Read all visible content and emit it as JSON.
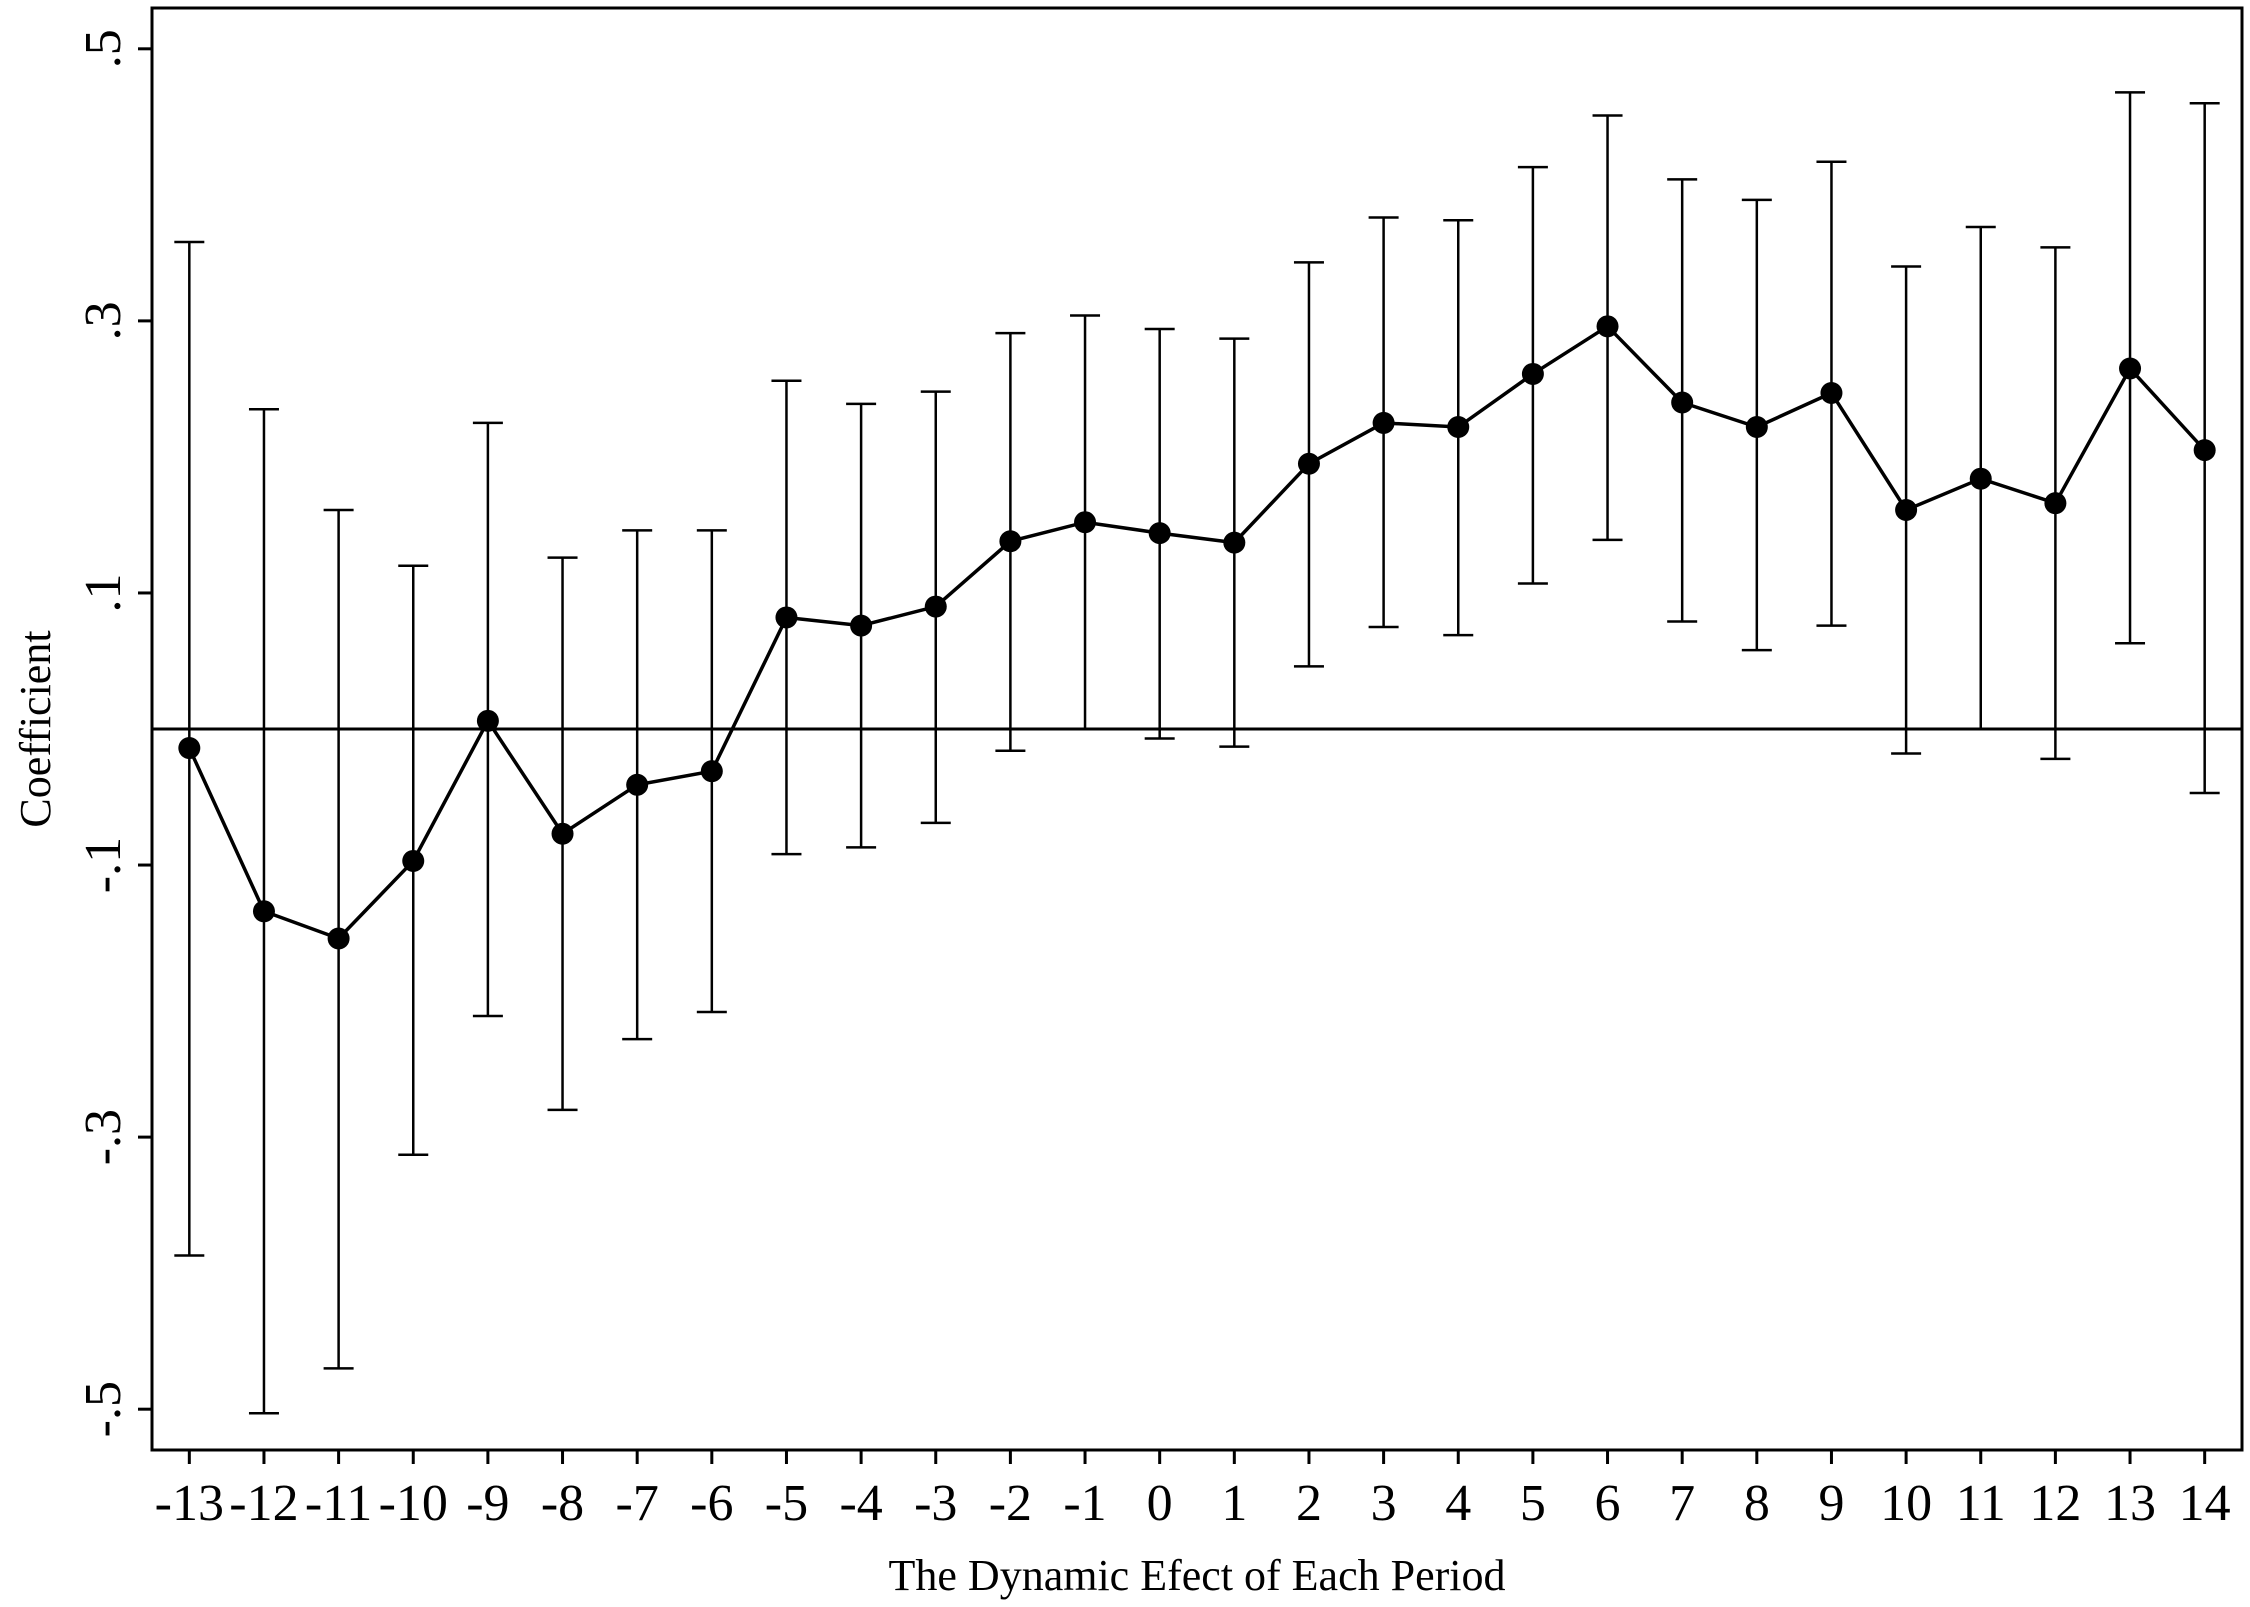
{
  "chart_data": {
    "type": "scatter",
    "xlabel": "The Dynamic Efect of Each Period",
    "ylabel": "Coefficient",
    "ylim": [
      -0.53,
      0.53
    ],
    "xlim": [
      -13.5,
      14.5
    ],
    "yticks": [
      -0.5,
      -0.3,
      -0.1,
      0.1,
      0.3,
      0.5
    ],
    "ytick_labels": [
      "-.5",
      "-.3",
      "-.1",
      ".1",
      ".3",
      ".5"
    ],
    "reference_line": 0,
    "grid": false,
    "legend": "none",
    "x": [
      -13,
      -12,
      -11,
      -10,
      -9,
      -8,
      -7,
      -6,
      -5,
      -4,
      -3,
      -2,
      -1,
      0,
      1,
      2,
      3,
      4,
      5,
      6,
      7,
      8,
      9,
      10,
      11,
      12,
      13,
      14
    ],
    "xtick_labels": [
      "-13",
      "-12",
      "-11",
      "-10",
      "-9",
      "-8",
      "-7",
      "-6",
      "-5",
      "-4",
      "-3",
      "-2",
      "-1",
      "0",
      "1",
      "2",
      "3",
      "4",
      "5",
      "6",
      "7",
      "8",
      "9",
      "10",
      "11",
      "12",
      "13",
      "14"
    ],
    "series": [
      {
        "values": [
          -0.014,
          -0.134,
          -0.154,
          -0.097,
          0.006,
          -0.077,
          -0.041,
          -0.031,
          0.082,
          0.076,
          0.09,
          0.138,
          0.152,
          0.144,
          0.137,
          0.195,
          0.225,
          0.222,
          0.261,
          0.296,
          0.24,
          0.222,
          0.247,
          0.161,
          0.184,
          0.166,
          0.265,
          0.205
        ],
        "ci_low": [
          -0.387,
          -0.503,
          -0.47,
          -0.313,
          -0.211,
          -0.28,
          -0.228,
          -0.208,
          -0.092,
          -0.087,
          -0.069,
          -0.016,
          0.0,
          -0.007,
          -0.013,
          0.046,
          0.075,
          0.069,
          0.107,
          0.139,
          0.079,
          0.058,
          0.076,
          -0.018,
          0.0,
          -0.022,
          0.063,
          -0.047
        ],
        "ci_high": [
          0.358,
          0.235,
          0.161,
          0.12,
          0.225,
          0.126,
          0.146,
          0.146,
          0.256,
          0.239,
          0.248,
          0.291,
          0.304,
          0.294,
          0.287,
          0.343,
          0.376,
          0.374,
          0.413,
          0.451,
          0.404,
          0.389,
          0.417,
          0.34,
          0.369,
          0.354,
          0.468,
          0.46
        ]
      }
    ],
    "colors": {
      "line": "#000000",
      "marker": "#000000",
      "frame": "#000000"
    }
  }
}
